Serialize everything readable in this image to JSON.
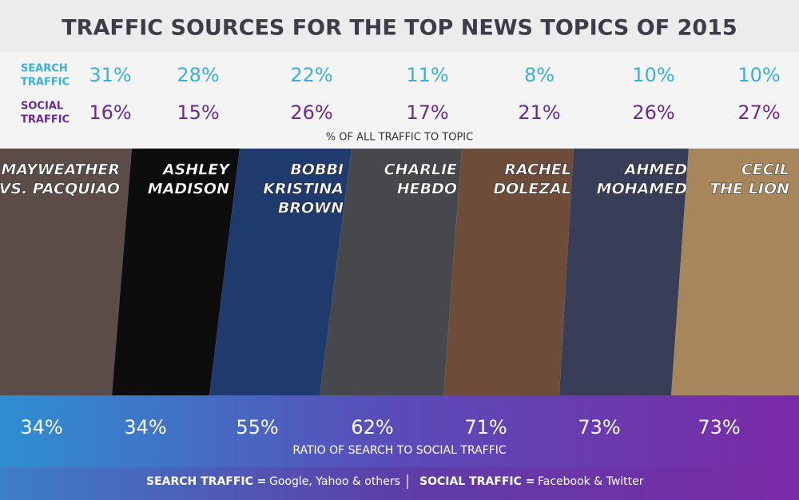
{
  "title": "TRAFFIC SOURCES FOR THE TOP NEWS TOPICS OF 2015",
  "search_row": {
    "label": [
      "SEARCH",
      "TRAFFIC"
    ],
    "values": [
      "31%",
      "28%",
      "22%",
      "11%",
      "8%",
      "10%",
      "10%"
    ]
  },
  "social_row": {
    "label": [
      "SOCIAL",
      "TRAFFIC"
    ],
    "values": [
      "16%",
      "15%",
      "26%",
      "17%",
      "21%",
      "26%",
      "27%"
    ]
  },
  "rows_caption": "% OF ALL TRAFFIC TO TOPIC",
  "topics": [
    [
      "MAYWEATHER",
      "VS. PACQUIAO"
    ],
    [
      "ASHLEY",
      "MADISON"
    ],
    [
      "BOBBI",
      "KRISTINA",
      "BROWN"
    ],
    [
      "CHARLIE",
      "HEBDO"
    ],
    [
      "RACHEL",
      "DOLEZAL"
    ],
    [
      "AHMED",
      "MOHAMED"
    ],
    [
      "CECIL",
      "THE LION"
    ]
  ],
  "ratios": [
    "34%",
    "34%",
    "55%",
    "62%",
    "71%",
    "73%",
    "73%"
  ],
  "ratio_caption": "RATIO OF SEARCH TO SOCIAL TRAFFIC",
  "footer": {
    "search_label": "SEARCH TRAFFIC =",
    "search_text": "Google, Yahoo & others",
    "social_label": "SOCIAL TRAFFIC =",
    "social_text": "Facebook & Twitter"
  }
}
